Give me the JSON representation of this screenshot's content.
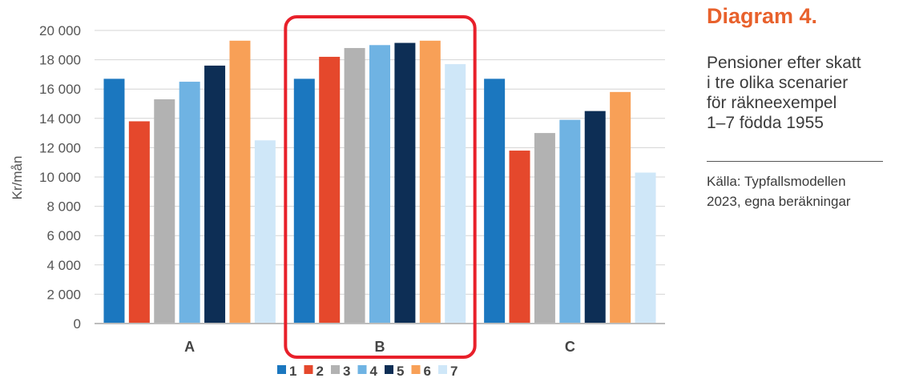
{
  "chart_data": {
    "type": "bar",
    "categories": [
      "A",
      "B",
      "C"
    ],
    "series": [
      {
        "name": "1",
        "color": "#1b77bf",
        "values": [
          16700,
          16700,
          16700
        ]
      },
      {
        "name": "2",
        "color": "#e5482c",
        "values": [
          13800,
          18200,
          11800
        ]
      },
      {
        "name": "3",
        "color": "#b2b2b2",
        "values": [
          15300,
          18800,
          13000
        ]
      },
      {
        "name": "4",
        "color": "#6fb3e3",
        "values": [
          16500,
          19000,
          13900
        ]
      },
      {
        "name": "5",
        "color": "#0d2e55",
        "values": [
          17600,
          19150,
          14500
        ]
      },
      {
        "name": "6",
        "color": "#f8a057",
        "values": [
          19300,
          19300,
          15800
        ]
      },
      {
        "name": "7",
        "color": "#cfe7f8",
        "values": [
          12500,
          17700,
          10300
        ]
      }
    ],
    "ylabel": "Kr/mån",
    "ylim": [
      0,
      20000
    ],
    "yticks": [
      "0",
      "2 000",
      "4 000",
      "6 000",
      "8 000",
      "10 000",
      "12 000",
      "14 000",
      "16 000",
      "18 000",
      "20 000"
    ],
    "grid": true,
    "legend": "bottom",
    "highlight_category": "B",
    "highlight_color": "#e8202a"
  },
  "side": {
    "title": "Diagram 4.",
    "subtitle_lines": [
      "Pensioner efter skatt",
      "i tre olika scenarier",
      "för räkneexempel",
      "1–7 födda 1955"
    ],
    "source_lines": [
      "Källa: Typfallsmodellen",
      "2023, egna beräkningar"
    ]
  }
}
